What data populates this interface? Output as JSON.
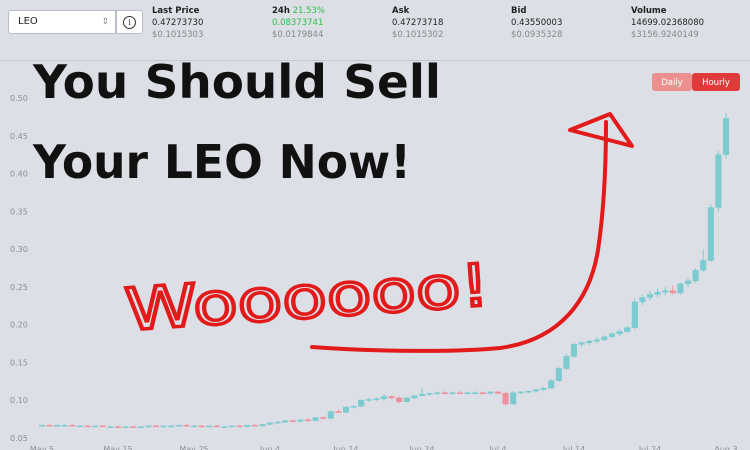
{
  "header": {
    "pair": "LEO",
    "columns": [
      {
        "label": "Last Price",
        "value": "0.47273730",
        "usd": "$0.1015303"
      },
      {
        "label": "24h",
        "change": "21.53%",
        "value": "0.08373741",
        "usd": "$0.0179844"
      },
      {
        "label": "Ask",
        "value": "0.47273718",
        "usd": "$0.1015302"
      },
      {
        "label": "Bid",
        "value": "0.43550003",
        "usd": "$0.0935328"
      },
      {
        "label": "Volume",
        "value": "14699.02368080",
        "usd": "$3156.9240149"
      }
    ]
  },
  "buttons": [
    "Daily",
    "Hourly"
  ],
  "chart_data": {
    "type": "candlestick",
    "annotations": [
      "You Should Sell",
      "Your LEO Now!",
      "Woooooo!"
    ],
    "up_color": "#7ccbd0",
    "down_color": "#f0909e",
    "ylim": [
      0.05,
      0.5
    ],
    "yticks": [
      0.05,
      {
        "value": 0.1,
        "label": "0.10"
      },
      0.15,
      {
        "value": 0.2,
        "label": "0.20"
      },
      0.25,
      {
        "value": 0.3,
        "label": "0.30"
      },
      0.35,
      {
        "value": 0.4,
        "label": "0.40"
      },
      0.45,
      {
        "value": 0.5,
        "label": "0.50"
      }
    ],
    "grid": false,
    "categories": [
      "May 5",
      null,
      null,
      null,
      null,
      null,
      null,
      null,
      null,
      null,
      "May 15",
      null,
      null,
      null,
      null,
      null,
      null,
      null,
      null,
      null,
      "May 25",
      null,
      null,
      null,
      null,
      null,
      null,
      null,
      null,
      null,
      "Jun 4",
      null,
      null,
      null,
      null,
      null,
      null,
      null,
      null,
      null,
      "Jun 14",
      null,
      null,
      null,
      null,
      null,
      null,
      null,
      null,
      null,
      "Jun 24",
      null,
      null,
      null,
      null,
      null,
      null,
      null,
      null,
      null,
      "Jul 4",
      null,
      null,
      null,
      null,
      null,
      null,
      null,
      null,
      null,
      "Jul 14",
      null,
      null,
      null,
      null,
      null,
      null,
      null,
      null,
      null,
      "Jul 24",
      null,
      null,
      null,
      null,
      null,
      null,
      null,
      null,
      null,
      "Aug 3"
    ],
    "ohlc": [
      [
        0.066,
        0.067,
        0.065,
        0.067
      ],
      [
        0.067,
        0.068,
        0.066,
        0.066
      ],
      [
        0.066,
        0.067,
        0.065,
        0.067
      ],
      [
        0.067,
        0.068,
        0.066,
        0.067
      ],
      [
        0.067,
        0.068,
        0.066,
        0.066
      ],
      [
        0.066,
        0.067,
        0.065,
        0.066
      ],
      [
        0.066,
        0.067,
        0.065,
        0.065
      ],
      [
        0.065,
        0.066,
        0.064,
        0.066
      ],
      [
        0.066,
        0.067,
        0.065,
        0.065
      ],
      [
        0.065,
        0.066,
        0.064,
        0.065
      ],
      [
        0.065,
        0.066,
        0.063,
        0.064
      ],
      [
        0.064,
        0.065,
        0.063,
        0.065
      ],
      [
        0.065,
        0.066,
        0.064,
        0.064
      ],
      [
        0.064,
        0.065,
        0.063,
        0.065
      ],
      [
        0.065,
        0.066,
        0.064,
        0.066
      ],
      [
        0.066,
        0.067,
        0.065,
        0.065
      ],
      [
        0.065,
        0.066,
        0.064,
        0.066
      ],
      [
        0.066,
        0.067,
        0.065,
        0.066
      ],
      [
        0.066,
        0.067,
        0.065,
        0.067
      ],
      [
        0.067,
        0.068,
        0.065,
        0.066
      ],
      [
        0.066,
        0.067,
        0.065,
        0.066
      ],
      [
        0.066,
        0.067,
        0.064,
        0.065
      ],
      [
        0.065,
        0.066,
        0.064,
        0.066
      ],
      [
        0.066,
        0.067,
        0.065,
        0.065
      ],
      [
        0.065,
        0.066,
        0.064,
        0.065
      ],
      [
        0.065,
        0.066,
        0.064,
        0.066
      ],
      [
        0.066,
        0.067,
        0.065,
        0.065
      ],
      [
        0.065,
        0.067,
        0.064,
        0.067
      ],
      [
        0.067,
        0.068,
        0.066,
        0.066
      ],
      [
        0.066,
        0.068,
        0.065,
        0.068
      ],
      [
        0.068,
        0.071,
        0.067,
        0.07
      ],
      [
        0.07,
        0.072,
        0.069,
        0.071
      ],
      [
        0.071,
        0.074,
        0.07,
        0.073
      ],
      [
        0.073,
        0.075,
        0.071,
        0.072
      ],
      [
        0.072,
        0.075,
        0.071,
        0.074
      ],
      [
        0.074,
        0.076,
        0.072,
        0.073
      ],
      [
        0.073,
        0.078,
        0.072,
        0.077
      ],
      [
        0.077,
        0.079,
        0.075,
        0.076
      ],
      [
        0.076,
        0.086,
        0.075,
        0.085
      ],
      [
        0.085,
        0.088,
        0.083,
        0.084
      ],
      [
        0.084,
        0.092,
        0.083,
        0.091
      ],
      [
        0.091,
        0.093,
        0.089,
        0.092
      ],
      [
        0.092,
        0.101,
        0.091,
        0.1
      ],
      [
        0.1,
        0.103,
        0.098,
        0.101
      ],
      [
        0.101,
        0.104,
        0.099,
        0.102
      ],
      [
        0.102,
        0.108,
        0.1,
        0.105
      ],
      [
        0.105,
        0.106,
        0.101,
        0.103
      ],
      [
        0.103,
        0.105,
        0.096,
        0.098
      ],
      [
        0.098,
        0.104,
        0.097,
        0.103
      ],
      [
        0.103,
        0.107,
        0.102,
        0.106
      ],
      [
        0.106,
        0.115,
        0.105,
        0.108
      ],
      [
        0.108,
        0.11,
        0.106,
        0.109
      ],
      [
        0.109,
        0.111,
        0.107,
        0.11
      ],
      [
        0.11,
        0.112,
        0.108,
        0.109
      ],
      [
        0.109,
        0.111,
        0.107,
        0.11
      ],
      [
        0.11,
        0.112,
        0.108,
        0.109
      ],
      [
        0.109,
        0.111,
        0.108,
        0.11
      ],
      [
        0.11,
        0.112,
        0.108,
        0.11
      ],
      [
        0.11,
        0.111,
        0.108,
        0.109
      ],
      [
        0.109,
        0.112,
        0.108,
        0.111
      ],
      [
        0.111,
        0.112,
        0.108,
        0.109
      ],
      [
        0.109,
        0.111,
        0.093,
        0.095
      ],
      [
        0.095,
        0.112,
        0.094,
        0.11
      ],
      [
        0.11,
        0.112,
        0.108,
        0.111
      ],
      [
        0.111,
        0.113,
        0.109,
        0.112
      ],
      [
        0.112,
        0.115,
        0.11,
        0.114
      ],
      [
        0.114,
        0.118,
        0.112,
        0.116
      ],
      [
        0.116,
        0.128,
        0.115,
        0.126
      ],
      [
        0.126,
        0.144,
        0.124,
        0.142
      ],
      [
        0.142,
        0.162,
        0.14,
        0.158
      ],
      [
        0.158,
        0.176,
        0.156,
        0.174
      ],
      [
        0.174,
        0.178,
        0.17,
        0.176
      ],
      [
        0.176,
        0.18,
        0.173,
        0.178
      ],
      [
        0.178,
        0.183,
        0.175,
        0.18
      ],
      [
        0.18,
        0.186,
        0.178,
        0.184
      ],
      [
        0.184,
        0.19,
        0.182,
        0.188
      ],
      [
        0.188,
        0.194,
        0.185,
        0.191
      ],
      [
        0.191,
        0.198,
        0.189,
        0.196
      ],
      [
        0.196,
        0.235,
        0.194,
        0.23
      ],
      [
        0.23,
        0.24,
        0.226,
        0.236
      ],
      [
        0.236,
        0.245,
        0.232,
        0.24
      ],
      [
        0.24,
        0.248,
        0.236,
        0.243
      ],
      [
        0.243,
        0.25,
        0.239,
        0.245
      ],
      [
        0.245,
        0.252,
        0.24,
        0.242
      ],
      [
        0.242,
        0.256,
        0.24,
        0.254
      ],
      [
        0.254,
        0.262,
        0.25,
        0.258
      ],
      [
        0.258,
        0.275,
        0.255,
        0.272
      ],
      [
        0.272,
        0.3,
        0.27,
        0.285
      ],
      [
        0.285,
        0.36,
        0.283,
        0.355
      ],
      [
        0.355,
        0.43,
        0.35,
        0.425
      ],
      [
        0.425,
        0.48,
        0.42,
        0.473
      ]
    ]
  }
}
